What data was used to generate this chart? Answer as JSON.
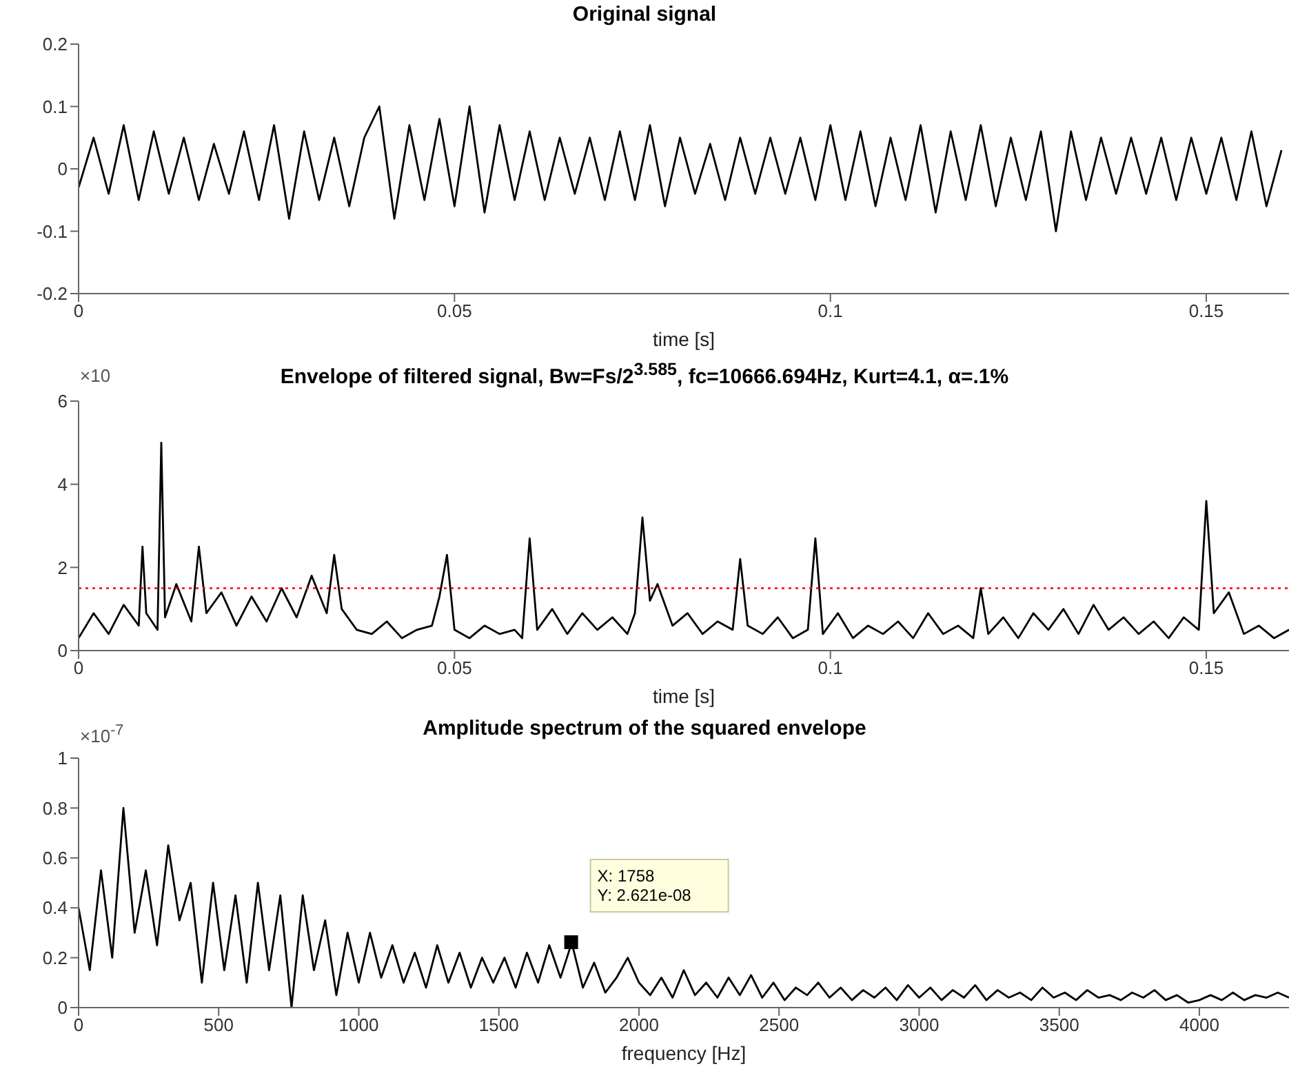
{
  "chart_data": [
    {
      "type": "line",
      "title": "Original signal",
      "xlabel": "time [s]",
      "xlim": [
        0,
        0.161
      ],
      "xticks": [
        0,
        0.05,
        0.1,
        0.15
      ],
      "ylim": [
        -0.2,
        0.2
      ],
      "yticks": [
        -0.2,
        -0.1,
        0,
        0.1,
        0.2
      ],
      "series": [
        {
          "color": "#000000",
          "x": [
            0,
            0.002,
            0.004,
            0.006,
            0.008,
            0.01,
            0.012,
            0.014,
            0.016,
            0.018,
            0.02,
            0.022,
            0.024,
            0.026,
            0.028,
            0.03,
            0.032,
            0.034,
            0.036,
            0.038,
            0.04,
            0.042,
            0.044,
            0.046,
            0.048,
            0.05,
            0.052,
            0.054,
            0.056,
            0.058,
            0.06,
            0.062,
            0.064,
            0.066,
            0.068,
            0.07,
            0.072,
            0.074,
            0.076,
            0.078,
            0.08,
            0.082,
            0.084,
            0.086,
            0.088,
            0.09,
            0.092,
            0.094,
            0.096,
            0.098,
            0.1,
            0.102,
            0.104,
            0.106,
            0.108,
            0.11,
            0.112,
            0.114,
            0.116,
            0.118,
            0.12,
            0.122,
            0.124,
            0.126,
            0.128,
            0.13,
            0.132,
            0.134,
            0.136,
            0.138,
            0.14,
            0.142,
            0.144,
            0.146,
            0.148,
            0.15,
            0.152,
            0.154,
            0.156,
            0.158,
            0.16
          ],
          "values": [
            -0.03,
            0.05,
            -0.04,
            0.07,
            -0.05,
            0.06,
            -0.04,
            0.05,
            -0.05,
            0.04,
            -0.04,
            0.06,
            -0.05,
            0.07,
            -0.08,
            0.06,
            -0.05,
            0.05,
            -0.06,
            0.05,
            0.1,
            -0.08,
            0.07,
            -0.05,
            0.08,
            -0.06,
            0.1,
            -0.07,
            0.07,
            -0.05,
            0.06,
            -0.05,
            0.05,
            -0.04,
            0.05,
            -0.05,
            0.06,
            -0.05,
            0.07,
            -0.06,
            0.05,
            -0.04,
            0.04,
            -0.05,
            0.05,
            -0.04,
            0.05,
            -0.04,
            0.05,
            -0.05,
            0.07,
            -0.05,
            0.06,
            -0.06,
            0.05,
            -0.05,
            0.07,
            -0.07,
            0.06,
            -0.05,
            0.07,
            -0.06,
            0.05,
            -0.05,
            0.06,
            -0.1,
            0.06,
            -0.05,
            0.05,
            -0.04,
            0.05,
            -0.04,
            0.05,
            -0.05,
            0.05,
            -0.04,
            0.05,
            -0.05,
            0.06,
            -0.06,
            0.03
          ]
        }
      ]
    },
    {
      "type": "line",
      "title": "Envelope of filtered signal, Bw=Fs/2$^{3.585}$, fc=10666.694Hz, Kurt=4.1, α=.1%",
      "xlabel": "time [s]",
      "xlim": [
        0,
        0.161
      ],
      "xticks": [
        0,
        0.05,
        0.1,
        0.15
      ],
      "ylim": [
        0,
        6
      ],
      "yticks": [
        0,
        2,
        4,
        6
      ],
      "annotations": [
        "×10"
      ],
      "ref_lines": [
        {
          "axis": "y",
          "value": 1.5,
          "color": "#ff0000",
          "line_style": "dotted"
        }
      ],
      "series": [
        {
          "color": "#000000",
          "x": [
            0,
            0.002,
            0.004,
            0.006,
            0.008,
            0.0085,
            0.009,
            0.0105,
            0.011,
            0.0115,
            0.013,
            0.015,
            0.016,
            0.017,
            0.019,
            0.021,
            0.023,
            0.025,
            0.027,
            0.029,
            0.031,
            0.033,
            0.034,
            0.035,
            0.037,
            0.039,
            0.041,
            0.043,
            0.045,
            0.047,
            0.048,
            0.049,
            0.05,
            0.052,
            0.054,
            0.056,
            0.058,
            0.059,
            0.06,
            0.061,
            0.063,
            0.065,
            0.067,
            0.069,
            0.071,
            0.073,
            0.074,
            0.075,
            0.076,
            0.077,
            0.079,
            0.081,
            0.083,
            0.085,
            0.087,
            0.088,
            0.089,
            0.091,
            0.093,
            0.095,
            0.097,
            0.098,
            0.099,
            0.101,
            0.103,
            0.105,
            0.107,
            0.109,
            0.111,
            0.113,
            0.115,
            0.117,
            0.119,
            0.12,
            0.121,
            0.123,
            0.125,
            0.127,
            0.129,
            0.131,
            0.133,
            0.135,
            0.137,
            0.139,
            0.141,
            0.143,
            0.145,
            0.147,
            0.149,
            0.15,
            0.151,
            0.153,
            0.155,
            0.157,
            0.159,
            0.161
          ],
          "values": [
            0.3,
            0.9,
            0.4,
            1.1,
            0.6,
            2.5,
            0.9,
            0.5,
            5.0,
            0.8,
            1.6,
            0.7,
            2.5,
            0.9,
            1.4,
            0.6,
            1.3,
            0.7,
            1.5,
            0.8,
            1.8,
            0.9,
            2.3,
            1.0,
            0.5,
            0.4,
            0.7,
            0.3,
            0.5,
            0.6,
            1.3,
            2.3,
            0.5,
            0.3,
            0.6,
            0.4,
            0.5,
            0.3,
            2.7,
            0.5,
            1.0,
            0.4,
            0.9,
            0.5,
            0.8,
            0.4,
            0.9,
            3.2,
            1.2,
            1.6,
            0.6,
            0.9,
            0.4,
            0.7,
            0.5,
            2.2,
            0.6,
            0.4,
            0.8,
            0.3,
            0.5,
            2.7,
            0.4,
            0.9,
            0.3,
            0.6,
            0.4,
            0.7,
            0.3,
            0.9,
            0.4,
            0.6,
            0.3,
            1.5,
            0.4,
            0.8,
            0.3,
            0.9,
            0.5,
            1.0,
            0.4,
            1.1,
            0.5,
            0.8,
            0.4,
            0.7,
            0.3,
            0.8,
            0.5,
            3.6,
            0.9,
            1.4,
            0.4,
            0.6,
            0.3,
            0.5
          ]
        }
      ]
    },
    {
      "type": "line",
      "title": "Amplitude spectrum of the squared envelope",
      "xlabel": "frequency [Hz]",
      "xlim": [
        0,
        4320
      ],
      "xticks": [
        0,
        500,
        1000,
        1500,
        2000,
        2500,
        3000,
        3500,
        4000
      ],
      "ylim": [
        0,
        1
      ],
      "yticks": [
        0,
        0.2,
        0.4,
        0.6,
        0.8,
        1
      ],
      "annotations": [
        "×10$^{-7}$",
        {
          "text": "X: 1758\nY: 2.621e-08",
          "x": 1758,
          "y": 0.2621
        }
      ],
      "series": [
        {
          "color": "#000000",
          "x": [
            0,
            40,
            80,
            120,
            160,
            200,
            240,
            280,
            320,
            360,
            400,
            440,
            480,
            520,
            560,
            600,
            640,
            680,
            720,
            760,
            800,
            840,
            880,
            920,
            960,
            1000,
            1040,
            1080,
            1120,
            1160,
            1200,
            1240,
            1280,
            1320,
            1360,
            1400,
            1440,
            1480,
            1520,
            1560,
            1600,
            1640,
            1680,
            1720,
            1760,
            1800,
            1840,
            1880,
            1920,
            1960,
            2000,
            2040,
            2080,
            2120,
            2160,
            2200,
            2240,
            2280,
            2320,
            2360,
            2400,
            2440,
            2480,
            2520,
            2560,
            2600,
            2640,
            2680,
            2720,
            2760,
            2800,
            2840,
            2880,
            2920,
            2960,
            3000,
            3040,
            3080,
            3120,
            3160,
            3200,
            3240,
            3280,
            3320,
            3360,
            3400,
            3440,
            3480,
            3520,
            3560,
            3600,
            3640,
            3680,
            3720,
            3760,
            3800,
            3840,
            3880,
            3920,
            3960,
            4000,
            4040,
            4080,
            4120,
            4160,
            4200,
            4240,
            4280,
            4320
          ],
          "values": [
            0.4,
            0.15,
            0.55,
            0.2,
            0.8,
            0.3,
            0.55,
            0.25,
            0.65,
            0.35,
            0.5,
            0.1,
            0.5,
            0.15,
            0.45,
            0.1,
            0.5,
            0.15,
            0.45,
            0.0,
            0.45,
            0.15,
            0.35,
            0.05,
            0.3,
            0.1,
            0.3,
            0.12,
            0.25,
            0.1,
            0.22,
            0.08,
            0.25,
            0.1,
            0.22,
            0.08,
            0.2,
            0.1,
            0.2,
            0.08,
            0.22,
            0.1,
            0.25,
            0.12,
            0.26,
            0.08,
            0.18,
            0.06,
            0.12,
            0.2,
            0.1,
            0.05,
            0.12,
            0.04,
            0.15,
            0.05,
            0.1,
            0.04,
            0.12,
            0.05,
            0.13,
            0.04,
            0.1,
            0.03,
            0.08,
            0.05,
            0.1,
            0.04,
            0.08,
            0.03,
            0.07,
            0.04,
            0.08,
            0.03,
            0.09,
            0.04,
            0.08,
            0.03,
            0.07,
            0.04,
            0.09,
            0.03,
            0.07,
            0.04,
            0.06,
            0.03,
            0.08,
            0.04,
            0.06,
            0.03,
            0.07,
            0.04,
            0.05,
            0.03,
            0.06,
            0.04,
            0.07,
            0.03,
            0.05,
            0.02,
            0.03,
            0.05,
            0.03,
            0.06,
            0.03,
            0.05,
            0.04,
            0.06,
            0.04
          ]
        }
      ]
    }
  ]
}
